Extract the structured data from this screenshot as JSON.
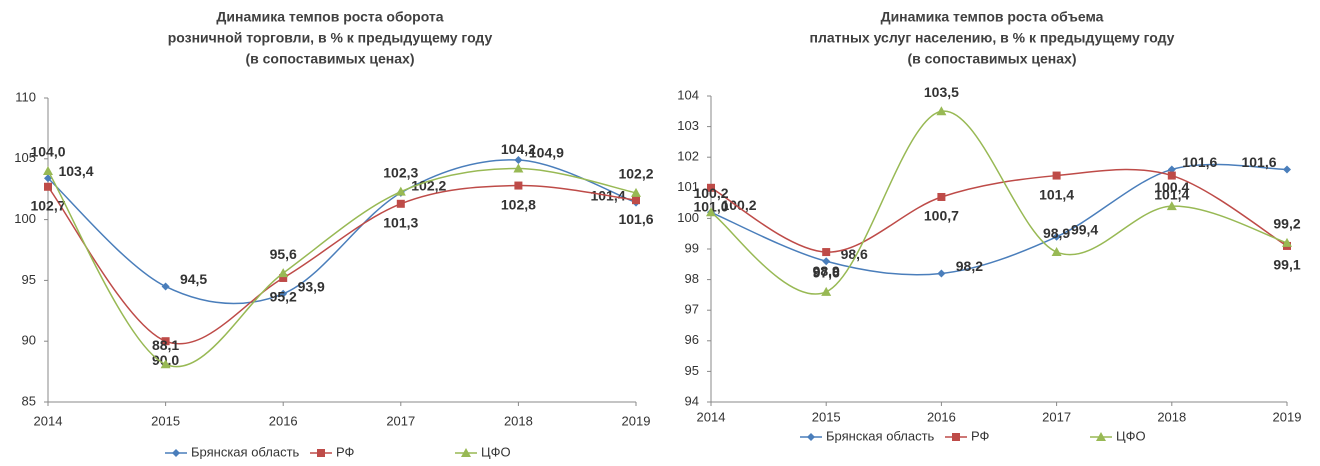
{
  "chart_data": [
    {
      "type": "line",
      "title": [
        "Динамика темпов роста оборота",
        "розничной торговли, в % к предыдущему году",
        "(в сопоставимых ценах)"
      ],
      "categories": [
        "2014",
        "2015",
        "2016",
        "2017",
        "2018",
        "2019"
      ],
      "ylim": [
        85,
        110
      ],
      "yticks": [
        85,
        90,
        95,
        100,
        105,
        110
      ],
      "smooth": true,
      "series": [
        {
          "name": "Брянская область",
          "color": "#4a7ebb",
          "marker": "diamond",
          "values": [
            103.4,
            94.5,
            93.9,
            102.2,
            104.9,
            101.4
          ],
          "value_labels": [
            "103,4",
            "94,5",
            "93,9",
            "102,2",
            "104,9",
            "101,4"
          ]
        },
        {
          "name": "РФ",
          "color": "#be4b48",
          "marker": "square",
          "values": [
            102.7,
            90.0,
            95.2,
            101.3,
            102.8,
            101.6
          ],
          "value_labels": [
            "102,7",
            "90,0",
            "95,2",
            "101,3",
            "102,8",
            "101,6"
          ]
        },
        {
          "name": "ЦФО",
          "color": "#98b954",
          "marker": "triangle",
          "values": [
            104.0,
            88.1,
            95.6,
            102.3,
            104.2,
            102.2
          ],
          "value_labels": [
            "104,0",
            "88,1",
            "95,6",
            "102,3",
            "104,2",
            "102,2"
          ]
        }
      ]
    },
    {
      "type": "line",
      "title": [
        "Динамика темпов роста объема",
        "платных услуг населению, в % к предыдущему году",
        "(в сопоставимых ценах)"
      ],
      "categories": [
        "2014",
        "2015",
        "2016",
        "2017",
        "2018",
        "2019"
      ],
      "ylim": [
        94,
        104
      ],
      "yticks": [
        94,
        95,
        96,
        97,
        98,
        99,
        100,
        101,
        102,
        103,
        104
      ],
      "smooth": true,
      "series": [
        {
          "name": "Брянская область",
          "color": "#4a7ebb",
          "marker": "diamond",
          "values": [
            100.2,
            98.6,
            98.2,
            99.4,
            101.6,
            101.6
          ],
          "value_labels": [
            "100,2",
            "98,6",
            "98,2",
            "99,4",
            "101,6",
            "101,6"
          ]
        },
        {
          "name": "РФ",
          "color": "#be4b48",
          "marker": "square",
          "values": [
            101.0,
            98.9,
            100.7,
            101.4,
            101.4,
            99.1
          ],
          "value_labels": [
            "101,0",
            "98,9",
            "100,7",
            "101,4",
            "101,4",
            "99,1"
          ]
        },
        {
          "name": "ЦФО",
          "color": "#98b954",
          "marker": "triangle",
          "values": [
            100.2,
            97.6,
            103.5,
            98.9,
            100.4,
            99.2
          ],
          "value_labels": [
            "100,2",
            "97,6",
            "103,5",
            "98,9",
            "100,4",
            "99,2"
          ]
        }
      ]
    }
  ]
}
